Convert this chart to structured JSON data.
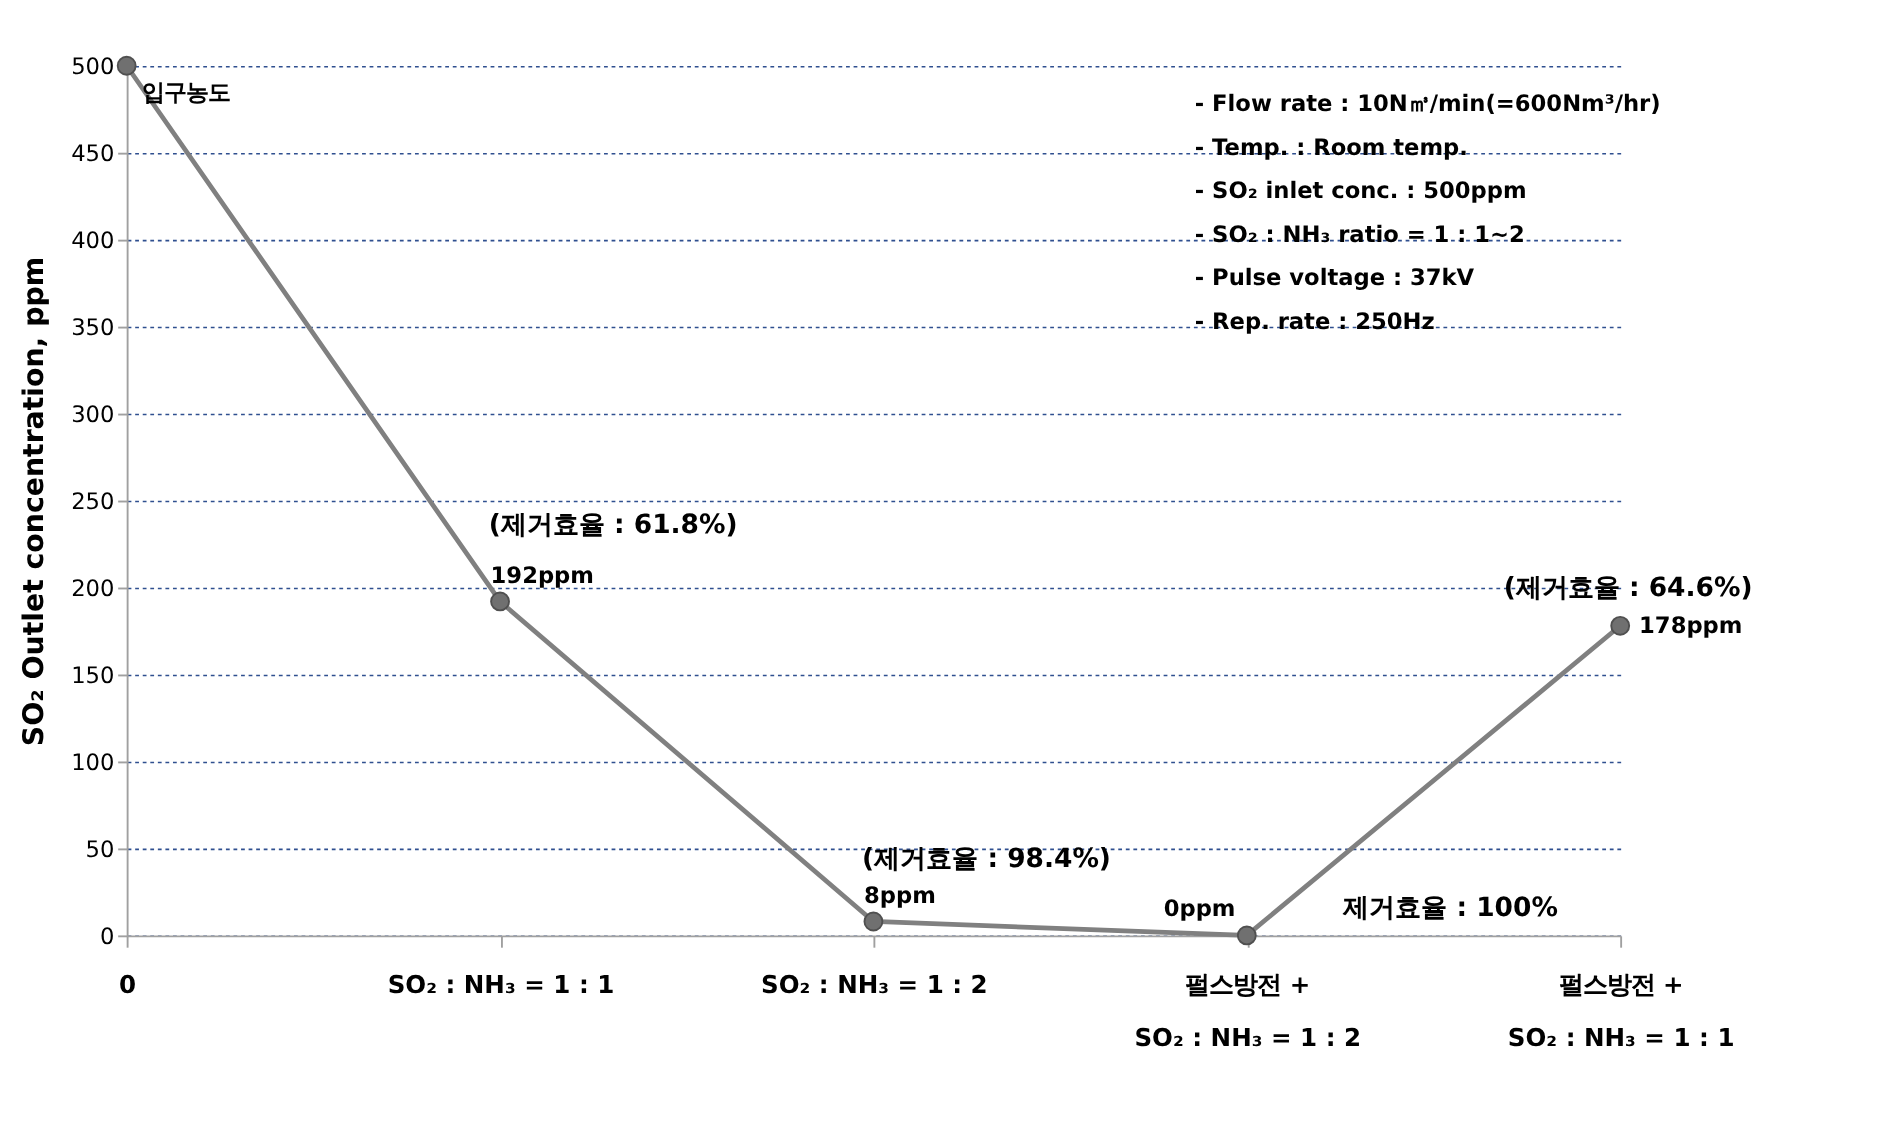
{
  "chart_data": {
    "type": "line",
    "ylabel": "SO₂ Outlet concentration, ppm",
    "categories": [
      "0",
      "SO₂ : NH₃ = 1 : 1",
      "SO₂ : NH₃ = 1 : 2",
      "펄스방전 +\nSO₂ : NH₃ = 1 : 2",
      "펄스방전 +\nSO₂ : NH₃ = 1 : 1"
    ],
    "series": [
      {
        "color": "#808080",
        "values": [
          500,
          192,
          8,
          0,
          178
        ]
      }
    ],
    "value_labels": [
      "입구농도",
      "192ppm",
      "8ppm",
      "0ppm",
      "178ppm"
    ],
    "ylim": [
      0,
      500
    ],
    "yticks": [
      0,
      50,
      100,
      150,
      200,
      250,
      300,
      350,
      400,
      450,
      500
    ],
    "grid": "y",
    "marker": "circle",
    "line_style": "solid",
    "annotations": [
      "(제거효율 : 61.8%)",
      "(제거효율 : 98.4%)",
      "제거효율 : 100%",
      "(제거효율 : 64.6%)",
      "- Flow rate : 10N㎥/min(=600Nm³/hr)",
      "- Temp. : Room temp.",
      "- SO₂ inlet conc. : 500ppm",
      "- SO₂ : NH₃ ratio = 1 : 1~2",
      "- Pulse voltage : 37kV",
      "- Rep. rate : 250Hz"
    ]
  }
}
